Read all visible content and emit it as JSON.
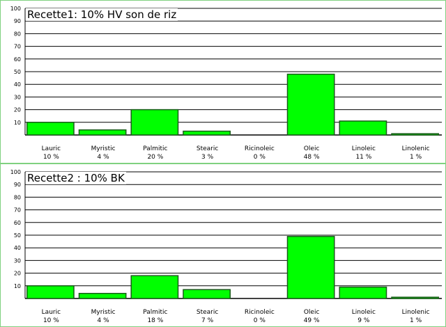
{
  "chart_data": [
    {
      "type": "bar",
      "title": "Recette1: 10% HV son de riz",
      "categories": [
        "Lauric",
        "Myristic",
        "Palmitic",
        "Stearic",
        "Ricinoleic",
        "Oleic",
        "Linoleic",
        "Linolenic"
      ],
      "values": [
        10,
        4,
        20,
        3,
        0,
        48,
        11,
        1
      ],
      "value_labels": [
        "10 %",
        "4 %",
        "20 %",
        "3 %",
        "0 %",
        "48 %",
        "11 %",
        "1 %"
      ],
      "yticks": [
        "10",
        "20",
        "30",
        "40",
        "50",
        "60",
        "70",
        "80",
        "90",
        "100"
      ],
      "ylim": [
        0,
        100
      ],
      "grid": true,
      "colors": {
        "bar": "#00ff00",
        "bar_edge": "#1a5c1a",
        "background": "#ffffff",
        "grid": "#000000",
        "frame": "#7fd17f"
      }
    },
    {
      "type": "bar",
      "title": "Recette2 : 10% BK",
      "categories": [
        "Lauric",
        "Myristic",
        "Palmitic",
        "Stearic",
        "Ricinoleic",
        "Oleic",
        "Linoleic",
        "Linolenic"
      ],
      "values": [
        10,
        4,
        18,
        7,
        0,
        49,
        9,
        1
      ],
      "value_labels": [
        "10 %",
        "4 %",
        "18 %",
        "7 %",
        "0 %",
        "49 %",
        "9 %",
        "1 %"
      ],
      "yticks": [
        "10",
        "20",
        "30",
        "40",
        "50",
        "60",
        "70",
        "80",
        "90",
        "100"
      ],
      "ylim": [
        0,
        100
      ],
      "grid": true,
      "colors": {
        "bar": "#00ff00",
        "bar_edge": "#1a5c1a",
        "background": "#ffffff",
        "grid": "#000000",
        "frame": "#7fd17f"
      }
    }
  ]
}
